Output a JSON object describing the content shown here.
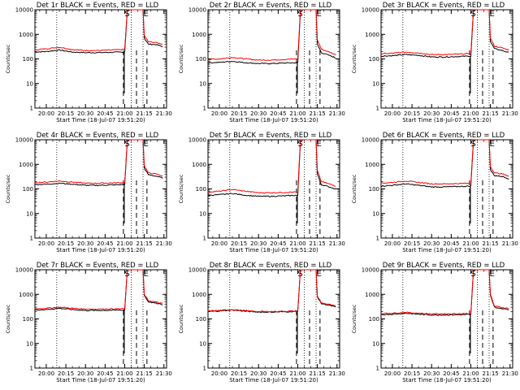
{
  "colors": {
    "events": "#000000",
    "lld": "#ff0000",
    "background": "#ffffff",
    "axis": "#000000"
  },
  "shared": {
    "ylabel": "Counts/sec",
    "xlabel": "Start Time (18-Jul-07 19:51:20)",
    "xticks": [
      "20:00",
      "20:15",
      "20:30",
      "20:45",
      "21:00",
      "21:15",
      "21:30"
    ],
    "yticks": [
      "1",
      "10",
      "100",
      "1000",
      "10000"
    ],
    "marker_s": "S",
    "marker_e": "E",
    "marker_s_times": [
      "21:00",
      "21:15"
    ],
    "dotted_line_times": [
      "20:08",
      "21:05",
      "21:14"
    ],
    "dashed_line_times": [
      "20:59",
      "21:09",
      "21:17"
    ]
  },
  "chart_data": [
    {
      "type": "line",
      "title": "Det 1r BLACK = Events, RED = LLD",
      "xlabel": "Start Time (18-Jul-07 19:51:20)",
      "ylabel": "Counts/sec",
      "yscale": "log",
      "ylim": [
        1,
        10000
      ],
      "xlim": [
        "19:51:20",
        "21:32"
      ],
      "series": [
        {
          "name": "Events",
          "color": "#000000",
          "x": [
            "19:51",
            "20:00",
            "20:10",
            "20:20",
            "20:30",
            "20:40",
            "20:50",
            "20:59",
            "21:00",
            "21:02",
            "21:04",
            "21:08",
            "21:12",
            "21:14",
            "21:15",
            "21:18",
            "21:24",
            "21:29"
          ],
          "y": [
            190,
            200,
            230,
            190,
            180,
            180,
            185,
            190,
            190,
            9000,
            10000,
            10000,
            10000,
            10000,
            700,
            400,
            380,
            320
          ]
        },
        {
          "name": "LLD",
          "color": "#ff0000",
          "x": [
            "19:51",
            "20:00",
            "20:10",
            "20:20",
            "20:30",
            "20:40",
            "20:50",
            "20:59",
            "21:00",
            "21:02",
            "21:04",
            "21:08",
            "21:12",
            "21:14",
            "21:15",
            "21:18",
            "21:24",
            "21:29"
          ],
          "y": [
            230,
            260,
            300,
            240,
            220,
            220,
            230,
            240,
            250,
            10000,
            10000,
            10000,
            10000,
            10000,
            900,
            500,
            460,
            400
          ]
        }
      ]
    },
    {
      "type": "line",
      "title": "Det 2r BLACK = Events, RED = LLD",
      "xlabel": "Start Time (18-Jul-07 19:51:20)",
      "ylabel": "Counts/sec",
      "yscale": "log",
      "ylim": [
        1,
        10000
      ],
      "xlim": [
        "19:51:20",
        "21:32"
      ],
      "series": [
        {
          "name": "Events",
          "color": "#000000",
          "x": [
            "19:51",
            "20:00",
            "20:10",
            "20:20",
            "20:30",
            "20:40",
            "20:50",
            "20:59",
            "21:00",
            "21:02",
            "21:04",
            "21:08",
            "21:12",
            "21:14",
            "21:15",
            "21:18",
            "21:24",
            "21:29"
          ],
          "y": [
            70,
            72,
            80,
            70,
            65,
            65,
            68,
            70,
            70,
            8000,
            10000,
            10000,
            10000,
            10000,
            400,
            180,
            140,
            110
          ]
        },
        {
          "name": "LLD",
          "color": "#ff0000",
          "x": [
            "19:51",
            "20:00",
            "20:10",
            "20:20",
            "20:30",
            "20:40",
            "20:50",
            "20:59",
            "21:00",
            "21:02",
            "21:04",
            "21:08",
            "21:12",
            "21:14",
            "21:15",
            "21:18",
            "21:24",
            "21:29"
          ],
          "y": [
            95,
            100,
            115,
            100,
            90,
            90,
            95,
            100,
            100,
            10000,
            10000,
            10000,
            10000,
            10000,
            600,
            250,
            190,
            150
          ]
        }
      ]
    },
    {
      "type": "line",
      "title": "Det 3r BLACK = Events, RED = LLD",
      "xlabel": "Start Time (18-Jul-07 19:51:20)",
      "ylabel": "Counts/sec",
      "yscale": "log",
      "ylim": [
        1,
        10000
      ],
      "xlim": [
        "19:51:20",
        "21:32"
      ],
      "series": [
        {
          "name": "Events",
          "color": "#000000",
          "x": [
            "19:51",
            "20:00",
            "20:10",
            "20:20",
            "20:30",
            "20:40",
            "20:50",
            "20:59",
            "21:00",
            "21:02",
            "21:04",
            "21:08",
            "21:12",
            "21:14",
            "21:15",
            "21:18",
            "21:24",
            "21:29"
          ],
          "y": [
            130,
            135,
            150,
            140,
            120,
            120,
            125,
            130,
            130,
            9000,
            10000,
            10000,
            10000,
            10000,
            500,
            260,
            220,
            180
          ]
        },
        {
          "name": "LLD",
          "color": "#ff0000",
          "x": [
            "19:51",
            "20:00",
            "20:10",
            "20:20",
            "20:30",
            "20:40",
            "20:50",
            "20:59",
            "21:00",
            "21:02",
            "21:04",
            "21:08",
            "21:12",
            "21:14",
            "21:15",
            "21:18",
            "21:24",
            "21:29"
          ],
          "y": [
            160,
            170,
            190,
            175,
            150,
            150,
            155,
            165,
            165,
            10000,
            10000,
            10000,
            10000,
            10000,
            700,
            330,
            280,
            230
          ]
        }
      ]
    },
    {
      "type": "line",
      "title": "Det 4r BLACK = Events, RED = LLD",
      "xlabel": "Start Time (18-Jul-07 19:51:20)",
      "ylabel": "Counts/sec",
      "yscale": "log",
      "ylim": [
        1,
        10000
      ],
      "xlim": [
        "19:51:20",
        "21:32"
      ],
      "series": [
        {
          "name": "Events",
          "color": "#000000",
          "x": [
            "19:51",
            "20:00",
            "20:10",
            "20:20",
            "20:30",
            "20:40",
            "20:50",
            "20:59",
            "21:00",
            "21:02",
            "21:04",
            "21:08",
            "21:12",
            "21:14",
            "21:15",
            "21:18",
            "21:24",
            "21:29"
          ],
          "y": [
            150,
            155,
            170,
            155,
            140,
            140,
            145,
            150,
            150,
            9000,
            10000,
            10000,
            10000,
            10000,
            700,
            380,
            330,
            280
          ]
        },
        {
          "name": "LLD",
          "color": "#ff0000",
          "x": [
            "19:51",
            "20:00",
            "20:10",
            "20:20",
            "20:30",
            "20:40",
            "20:50",
            "20:59",
            "21:00",
            "21:02",
            "21:04",
            "21:08",
            "21:12",
            "21:14",
            "21:15",
            "21:18",
            "21:24",
            "21:29"
          ],
          "y": [
            180,
            190,
            210,
            190,
            170,
            170,
            175,
            180,
            180,
            10000,
            10000,
            10000,
            10000,
            10000,
            900,
            450,
            400,
            340
          ]
        }
      ]
    },
    {
      "type": "line",
      "title": "Det 5r BLACK = Events, RED = LLD",
      "xlabel": "Start Time (18-Jul-07 19:51:20)",
      "ylabel": "Counts/sec",
      "yscale": "log",
      "ylim": [
        1,
        10000
      ],
      "xlim": [
        "19:51:20",
        "21:32"
      ],
      "series": [
        {
          "name": "Events",
          "color": "#000000",
          "x": [
            "19:51",
            "20:00",
            "20:10",
            "20:20",
            "20:30",
            "20:40",
            "20:50",
            "20:59",
            "21:00",
            "21:02",
            "21:04",
            "21:08",
            "21:12",
            "21:14",
            "21:15",
            "21:18",
            "21:24",
            "21:29"
          ],
          "y": [
            55,
            58,
            65,
            55,
            50,
            50,
            52,
            55,
            55,
            8000,
            10000,
            10000,
            10000,
            10000,
            400,
            150,
            120,
            100
          ]
        },
        {
          "name": "LLD",
          "color": "#ff0000",
          "x": [
            "19:51",
            "20:00",
            "20:10",
            "20:20",
            "20:30",
            "20:40",
            "20:50",
            "20:59",
            "21:00",
            "21:02",
            "21:04",
            "21:08",
            "21:12",
            "21:14",
            "21:15",
            "21:18",
            "21:24",
            "21:29"
          ],
          "y": [
            75,
            80,
            95,
            80,
            70,
            70,
            72,
            75,
            75,
            10000,
            10000,
            10000,
            10000,
            10000,
            550,
            200,
            160,
            130
          ]
        }
      ]
    },
    {
      "type": "line",
      "title": "Det 6r BLACK = Events, RED = LLD",
      "xlabel": "Start Time (18-Jul-07 19:51:20)",
      "ylabel": "Counts/sec",
      "yscale": "log",
      "ylim": [
        1,
        10000
      ],
      "xlim": [
        "19:51:20",
        "21:32"
      ],
      "series": [
        {
          "name": "Events",
          "color": "#000000",
          "x": [
            "19:51",
            "20:00",
            "20:10",
            "20:20",
            "20:30",
            "20:40",
            "20:50",
            "20:59",
            "21:00",
            "21:02",
            "21:04",
            "21:08",
            "21:12",
            "21:14",
            "21:15",
            "21:18",
            "21:24",
            "21:29"
          ],
          "y": [
            130,
            140,
            160,
            140,
            120,
            120,
            125,
            130,
            130,
            9000,
            10000,
            10000,
            10000,
            10000,
            600,
            350,
            320,
            260
          ]
        },
        {
          "name": "LLD",
          "color": "#ff0000",
          "x": [
            "19:51",
            "20:00",
            "20:10",
            "20:20",
            "20:30",
            "20:40",
            "20:50",
            "20:59",
            "21:00",
            "21:02",
            "21:04",
            "21:08",
            "21:12",
            "21:14",
            "21:15",
            "21:18",
            "21:24",
            "21:29"
          ],
          "y": [
            170,
            185,
            210,
            185,
            160,
            160,
            165,
            170,
            170,
            10000,
            10000,
            10000,
            10000,
            10000,
            800,
            450,
            410,
            330
          ]
        }
      ]
    },
    {
      "type": "line",
      "title": "Det 7r BLACK = Events, RED = LLD",
      "xlabel": "Start Time (18-Jul-07 19:51:20)",
      "ylabel": "Counts/sec",
      "yscale": "log",
      "ylim": [
        1,
        10000
      ],
      "xlim": [
        "19:51:20",
        "21:32"
      ],
      "series": [
        {
          "name": "Events",
          "color": "#000000",
          "x": [
            "19:51",
            "20:00",
            "20:10",
            "20:20",
            "20:30",
            "20:40",
            "20:50",
            "20:59",
            "21:00",
            "21:02",
            "21:04",
            "21:08",
            "21:12",
            "21:14",
            "21:15",
            "21:18",
            "21:24",
            "21:29"
          ],
          "y": [
            230,
            240,
            270,
            240,
            220,
            220,
            225,
            230,
            230,
            10000,
            10000,
            10000,
            10000,
            10000,
            900,
            500,
            430,
            380
          ]
        },
        {
          "name": "LLD",
          "color": "#ff0000",
          "x": [
            "19:51",
            "20:00",
            "20:10",
            "20:20",
            "20:30",
            "20:40",
            "20:50",
            "20:59",
            "21:00",
            "21:02",
            "21:04",
            "21:08",
            "21:12",
            "21:14",
            "21:15",
            "21:18",
            "21:24",
            "21:29"
          ],
          "y": [
            260,
            270,
            300,
            270,
            250,
            250,
            255,
            260,
            260,
            10000,
            10000,
            10000,
            10000,
            10000,
            1000,
            560,
            480,
            420
          ]
        }
      ]
    },
    {
      "type": "line",
      "title": "Det 8r BLACK = Events, RED = LLD",
      "xlabel": "Start Time (18-Jul-07 19:51:20)",
      "ylabel": "Counts/sec",
      "yscale": "log",
      "ylim": [
        1,
        10000
      ],
      "xlim": [
        "19:51:20",
        "21:32"
      ],
      "series": [
        {
          "name": "Events",
          "color": "#000000",
          "x": [
            "19:51",
            "20:00",
            "20:10",
            "20:20",
            "20:30",
            "20:40",
            "20:50",
            "20:59",
            "21:00",
            "21:02",
            "21:04",
            "21:08",
            "21:12",
            "21:14",
            "21:15",
            "21:18",
            "21:24",
            "21:29"
          ],
          "y": [
            200,
            210,
            230,
            205,
            190,
            190,
            195,
            200,
            200,
            10000,
            10000,
            10000,
            10000,
            10000,
            800,
            420,
            360,
            300
          ]
        },
        {
          "name": "LLD",
          "color": "#ff0000",
          "x": [
            "19:51",
            "20:00",
            "20:10",
            "20:20",
            "20:30",
            "20:40",
            "20:50",
            "20:59",
            "21:00",
            "21:02",
            "21:04",
            "21:08",
            "21:12",
            "21:14",
            "21:15",
            "21:18",
            "21:24",
            "21:29"
          ],
          "y": [
            210,
            220,
            240,
            215,
            200,
            200,
            205,
            210,
            210,
            10000,
            10000,
            10000,
            10000,
            10000,
            850,
            450,
            390,
            330
          ]
        }
      ]
    },
    {
      "type": "line",
      "title": "Det 9r BLACK = Events, RED = LLD",
      "xlabel": "Start Time (18-Jul-07 19:51:20)",
      "ylabel": "Counts/sec",
      "yscale": "log",
      "ylim": [
        1,
        10000
      ],
      "xlim": [
        "19:51:20",
        "21:32"
      ],
      "series": [
        {
          "name": "Events",
          "color": "#000000",
          "x": [
            "19:51",
            "20:00",
            "20:10",
            "20:20",
            "20:30",
            "20:40",
            "20:50",
            "20:59",
            "21:00",
            "21:02",
            "21:04",
            "21:08",
            "21:12",
            "21:14",
            "21:15",
            "21:18",
            "21:24",
            "21:29"
          ],
          "y": [
            150,
            155,
            170,
            155,
            145,
            145,
            148,
            150,
            150,
            9000,
            10000,
            10000,
            10000,
            10000,
            900,
            300,
            260,
            240
          ]
        },
        {
          "name": "LLD",
          "color": "#ff0000",
          "x": [
            "19:51",
            "20:00",
            "20:10",
            "20:20",
            "20:30",
            "20:40",
            "20:50",
            "20:59",
            "21:00",
            "21:02",
            "21:04",
            "21:08",
            "21:12",
            "21:14",
            "21:15",
            "21:18",
            "21:24",
            "21:29"
          ],
          "y": [
            165,
            170,
            185,
            170,
            160,
            160,
            163,
            165,
            165,
            10000,
            10000,
            10000,
            10000,
            10000,
            1000,
            330,
            290,
            270
          ]
        }
      ]
    }
  ]
}
